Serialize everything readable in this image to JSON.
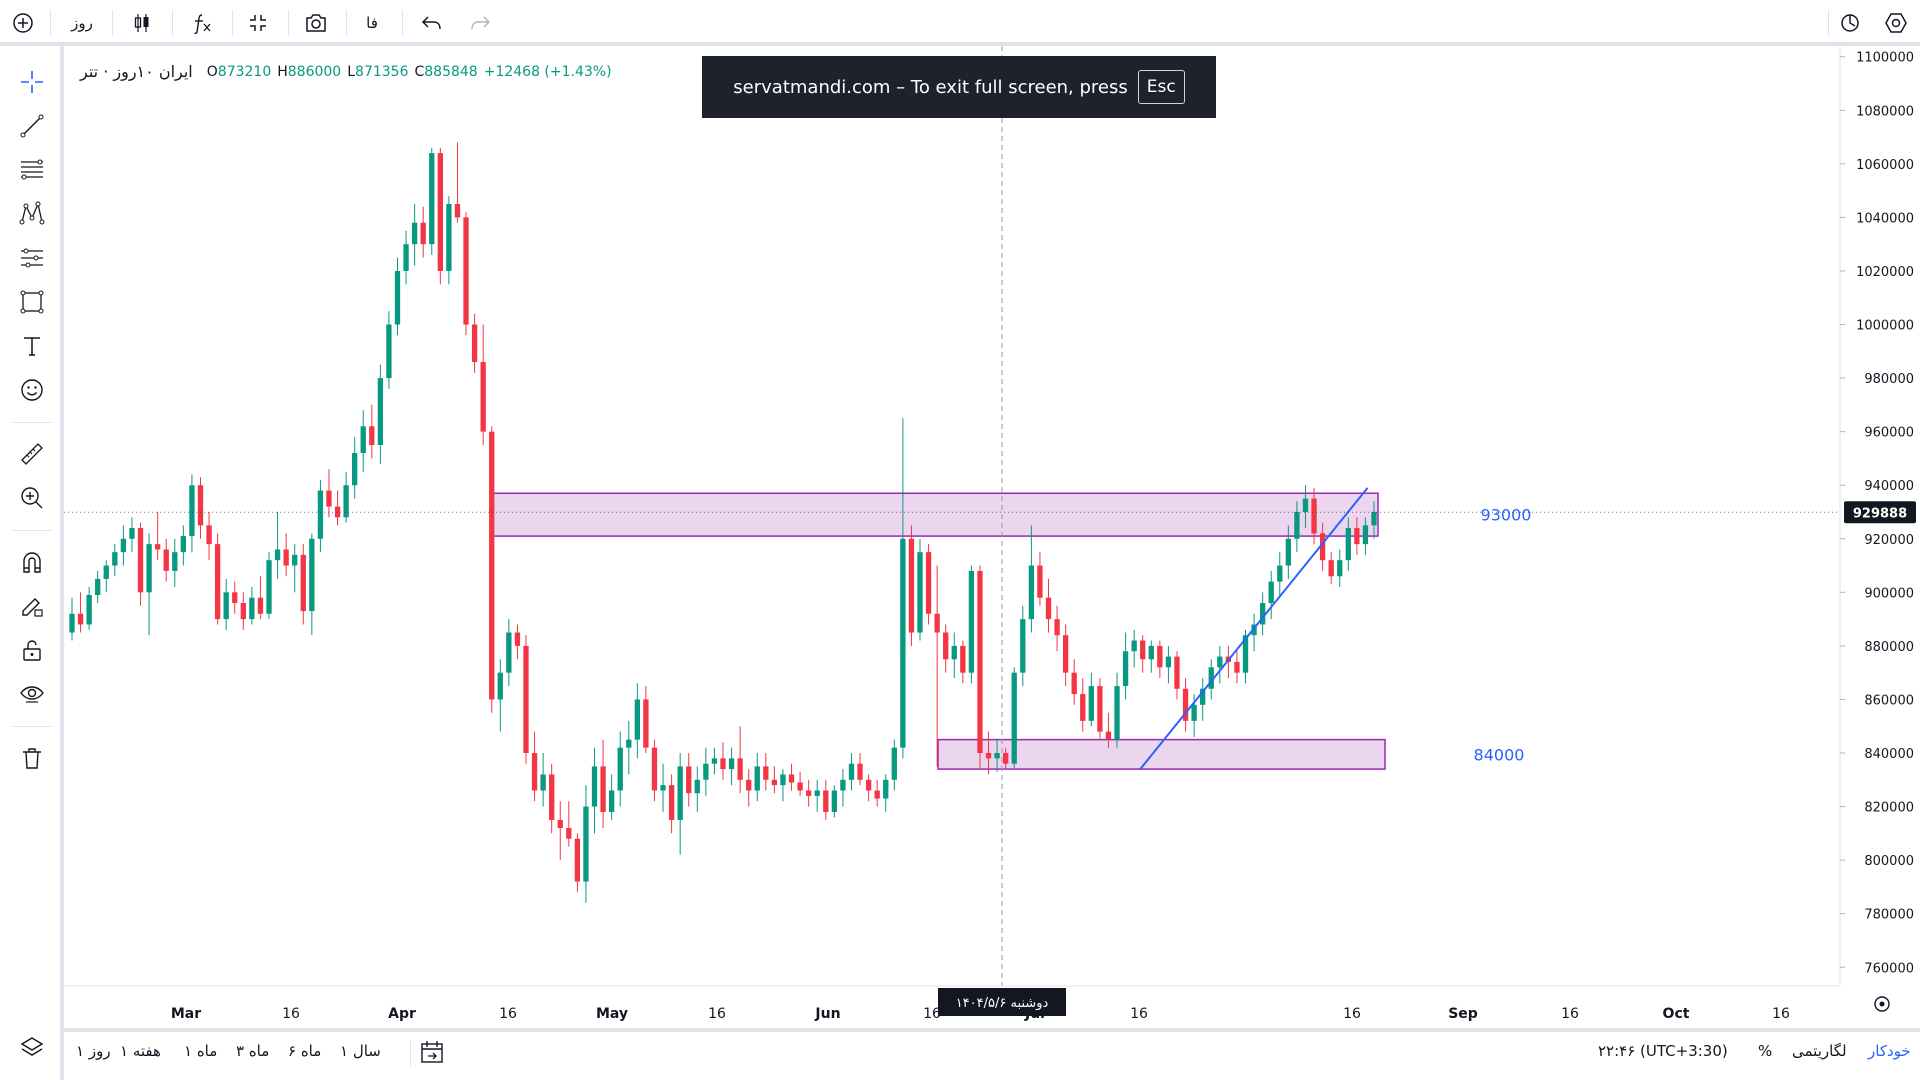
{
  "topbar": {
    "interval": "روز",
    "lang": "فا"
  },
  "legend": {
    "symbol": "ایران ۱۰روز · تتر",
    "o_label": "O",
    "o": "873210",
    "h_label": "H",
    "h": "886000",
    "l_label": "L",
    "l": "871356",
    "c_label": "C",
    "c": "885848",
    "change": "+12468 (+1.43%)"
  },
  "toast": {
    "message": "servatmandi.com – To exit full screen, press",
    "key": "Esc"
  },
  "chart_data": {
    "type": "candlestick",
    "ylim": [
      753000,
      1104000
    ],
    "y_ticks": [
      1100000,
      1080000,
      1060000,
      1040000,
      1020000,
      1000000,
      980000,
      960000,
      940000,
      920000,
      900000,
      880000,
      860000,
      840000,
      820000,
      800000,
      780000,
      760000
    ],
    "x_ticks": [
      "Mar",
      "16",
      "Apr",
      "16",
      "May",
      "16",
      "Jun",
      "16",
      "Jul",
      "16",
      "16",
      "Sep",
      "16",
      "Oct",
      "16"
    ],
    "last_price": "929888",
    "crosshair_date": "دوشنبه ۱۴۰۴/۵/۶",
    "zones": [
      {
        "label": "93000",
        "low": 921000,
        "high": 937000
      },
      {
        "label": "84000",
        "low": 834000,
        "high": 845000
      }
    ],
    "trendline": {
      "from": [
        0.606,
        834000
      ],
      "to": [
        0.734,
        939000
      ]
    },
    "ohlc": [
      [
        885000,
        898000,
        882000,
        892000
      ],
      [
        892000,
        900000,
        885000,
        888000
      ],
      [
        888000,
        902000,
        886000,
        899000
      ],
      [
        899000,
        908000,
        896000,
        905000
      ],
      [
        905000,
        912000,
        900000,
        910000
      ],
      [
        910000,
        918000,
        906000,
        915000
      ],
      [
        915000,
        925000,
        910000,
        920000
      ],
      [
        920000,
        928000,
        915000,
        924000
      ],
      [
        924000,
        926000,
        895000,
        900000
      ],
      [
        900000,
        922000,
        884000,
        918000
      ],
      [
        918000,
        930000,
        912000,
        916000
      ],
      [
        916000,
        920000,
        904000,
        908000
      ],
      [
        908000,
        920000,
        902000,
        915000
      ],
      [
        915000,
        925000,
        910000,
        921000
      ],
      [
        921000,
        944000,
        915000,
        940000
      ],
      [
        940000,
        943000,
        920000,
        925000
      ],
      [
        925000,
        930000,
        912000,
        918000
      ],
      [
        918000,
        922000,
        888000,
        890000
      ],
      [
        890000,
        905000,
        886000,
        900000
      ],
      [
        900000,
        904000,
        892000,
        896000
      ],
      [
        896000,
        900000,
        886000,
        890000
      ],
      [
        890000,
        902000,
        888000,
        898000
      ],
      [
        898000,
        906000,
        890000,
        892000
      ],
      [
        892000,
        915000,
        890000,
        912000
      ],
      [
        912000,
        930000,
        905000,
        916000
      ],
      [
        916000,
        922000,
        906000,
        910000
      ],
      [
        910000,
        918000,
        900000,
        914000
      ],
      [
        914000,
        918000,
        888000,
        893000
      ],
      [
        893000,
        922000,
        884000,
        920000
      ],
      [
        920000,
        942000,
        915000,
        938000
      ],
      [
        938000,
        946000,
        928000,
        932000
      ],
      [
        932000,
        938000,
        925000,
        928000
      ],
      [
        928000,
        945000,
        926000,
        940000
      ],
      [
        940000,
        958000,
        935000,
        952000
      ],
      [
        952000,
        968000,
        945000,
        962000
      ],
      [
        962000,
        970000,
        950000,
        955000
      ],
      [
        955000,
        985000,
        948000,
        980000
      ],
      [
        980000,
        1005000,
        976000,
        1000000
      ],
      [
        1000000,
        1025000,
        996000,
        1020000
      ],
      [
        1020000,
        1035000,
        1015000,
        1030000
      ],
      [
        1030000,
        1045000,
        1022000,
        1038000
      ],
      [
        1038000,
        1044000,
        1025000,
        1030000
      ],
      [
        1030000,
        1066000,
        1026000,
        1064000
      ],
      [
        1064000,
        1066000,
        1015000,
        1020000
      ],
      [
        1020000,
        1048000,
        1015000,
        1045000
      ],
      [
        1045000,
        1068000,
        1038000,
        1040000
      ],
      [
        1040000,
        1042000,
        996000,
        1000000
      ],
      [
        1000000,
        1004000,
        982000,
        986000
      ],
      [
        986000,
        1000000,
        955000,
        960000
      ],
      [
        960000,
        962000,
        855000,
        860000
      ],
      [
        860000,
        875000,
        848000,
        870000
      ],
      [
        870000,
        890000,
        865000,
        885000
      ],
      [
        885000,
        888000,
        875000,
        880000
      ],
      [
        880000,
        884000,
        836000,
        840000
      ],
      [
        840000,
        848000,
        822000,
        826000
      ],
      [
        826000,
        840000,
        820000,
        832000
      ],
      [
        832000,
        836000,
        810000,
        815000
      ],
      [
        815000,
        822000,
        800000,
        812000
      ],
      [
        812000,
        822000,
        805000,
        808000
      ],
      [
        808000,
        810000,
        788000,
        792000
      ],
      [
        792000,
        828000,
        784000,
        820000
      ],
      [
        820000,
        842000,
        810000,
        835000
      ],
      [
        835000,
        845000,
        812000,
        818000
      ],
      [
        818000,
        832000,
        815000,
        826000
      ],
      [
        826000,
        848000,
        820000,
        842000
      ],
      [
        842000,
        852000,
        832000,
        845000
      ],
      [
        845000,
        866000,
        838000,
        860000
      ],
      [
        860000,
        865000,
        840000,
        842000
      ],
      [
        842000,
        845000,
        822000,
        826000
      ],
      [
        826000,
        836000,
        818000,
        828000
      ],
      [
        828000,
        832000,
        810000,
        815000
      ],
      [
        815000,
        840000,
        802000,
        835000
      ],
      [
        835000,
        840000,
        820000,
        825000
      ],
      [
        825000,
        835000,
        818000,
        830000
      ],
      [
        830000,
        842000,
        824000,
        836000
      ],
      [
        836000,
        842000,
        832000,
        838000
      ],
      [
        838000,
        844000,
        830000,
        834000
      ],
      [
        834000,
        842000,
        828000,
        838000
      ],
      [
        838000,
        850000,
        825000,
        830000
      ],
      [
        830000,
        834000,
        820000,
        826000
      ],
      [
        826000,
        840000,
        822000,
        835000
      ],
      [
        835000,
        840000,
        826000,
        830000
      ],
      [
        830000,
        835000,
        825000,
        828000
      ],
      [
        828000,
        834000,
        822000,
        832000
      ],
      [
        832000,
        836000,
        826000,
        829000
      ],
      [
        829000,
        833000,
        824000,
        826000
      ],
      [
        826000,
        830000,
        820000,
        824000
      ],
      [
        824000,
        830000,
        818000,
        826000
      ],
      [
        826000,
        830000,
        815000,
        818000
      ],
      [
        818000,
        828000,
        816000,
        826000
      ],
      [
        826000,
        834000,
        820000,
        830000
      ],
      [
        830000,
        840000,
        826000,
        836000
      ],
      [
        836000,
        840000,
        828000,
        830000
      ],
      [
        830000,
        832000,
        822000,
        826000
      ],
      [
        826000,
        830000,
        820000,
        823000
      ],
      [
        823000,
        832000,
        818000,
        830000
      ],
      [
        830000,
        845000,
        826000,
        842000
      ],
      [
        842000,
        965000,
        838000,
        920000
      ],
      [
        920000,
        925000,
        880000,
        885000
      ],
      [
        885000,
        920000,
        882000,
        915000
      ],
      [
        915000,
        918000,
        888000,
        892000
      ],
      [
        892000,
        910000,
        835000,
        885000
      ],
      [
        885000,
        888000,
        870000,
        875000
      ],
      [
        875000,
        885000,
        868000,
        880000
      ],
      [
        880000,
        882000,
        866000,
        870000
      ],
      [
        870000,
        910000,
        866000,
        908000
      ],
      [
        908000,
        910000,
        834000,
        840000
      ],
      [
        840000,
        848000,
        832000,
        838000
      ],
      [
        838000,
        845000,
        833000,
        840000
      ],
      [
        840000,
        842000,
        834000,
        836000
      ],
      [
        836000,
        872000,
        834000,
        870000
      ],
      [
        870000,
        895000,
        865000,
        890000
      ],
      [
        890000,
        925000,
        885000,
        910000
      ],
      [
        910000,
        915000,
        895000,
        898000
      ],
      [
        898000,
        905000,
        885000,
        890000
      ],
      [
        890000,
        895000,
        878000,
        884000
      ],
      [
        884000,
        888000,
        865000,
        870000
      ],
      [
        870000,
        875000,
        858000,
        862000
      ],
      [
        862000,
        868000,
        848000,
        852000
      ],
      [
        852000,
        870000,
        850000,
        865000
      ],
      [
        865000,
        868000,
        845000,
        848000
      ],
      [
        848000,
        855000,
        842000,
        845000
      ],
      [
        845000,
        870000,
        842000,
        865000
      ],
      [
        865000,
        885000,
        860000,
        878000
      ],
      [
        878000,
        886000,
        872000,
        882000
      ],
      [
        882000,
        884000,
        870000,
        875000
      ],
      [
        875000,
        882000,
        870000,
        880000
      ],
      [
        880000,
        882000,
        868000,
        872000
      ],
      [
        872000,
        880000,
        866000,
        876000
      ],
      [
        876000,
        878000,
        860000,
        864000
      ],
      [
        864000,
        868000,
        848000,
        852000
      ],
      [
        852000,
        862000,
        846000,
        858000
      ],
      [
        858000,
        868000,
        852000,
        864000
      ],
      [
        864000,
        875000,
        860000,
        872000
      ],
      [
        872000,
        880000,
        866000,
        876000
      ],
      [
        876000,
        880000,
        868000,
        874000
      ],
      [
        874000,
        878000,
        866000,
        870000
      ],
      [
        870000,
        886000,
        866000,
        884000
      ],
      [
        884000,
        892000,
        878000,
        888000
      ],
      [
        888000,
        900000,
        884000,
        896000
      ],
      [
        896000,
        908000,
        890000,
        904000
      ],
      [
        904000,
        915000,
        898000,
        910000
      ],
      [
        910000,
        925000,
        905000,
        920000
      ],
      [
        920000,
        934000,
        915000,
        930000
      ],
      [
        930000,
        940000,
        924000,
        935000
      ],
      [
        935000,
        939000,
        918000,
        922000
      ],
      [
        922000,
        926000,
        908000,
        912000
      ],
      [
        912000,
        915000,
        903000,
        906000
      ],
      [
        906000,
        916000,
        902000,
        912000
      ],
      [
        912000,
        928000,
        908000,
        924000
      ],
      [
        924000,
        928000,
        914000,
        918000
      ],
      [
        918000,
        928000,
        914000,
        925000
      ],
      [
        925000,
        934000,
        920000,
        930000
      ]
    ]
  },
  "bottombar": {
    "ranges": [
      "۱ روز",
      "۱ هفته",
      "۱ ماه",
      "۳ ماه",
      "۶ ماه",
      "۱ سال"
    ],
    "time": "۲۲:۴۶ (UTC+3:30)",
    "percent": "%",
    "log": "لگاریتمی",
    "auto": "خودکار"
  },
  "colors": {
    "up": "#089981",
    "down": "#f23645",
    "zone_fill": "#e1bee7",
    "zone_stroke": "#9c27b0",
    "trend": "#2962ff"
  }
}
